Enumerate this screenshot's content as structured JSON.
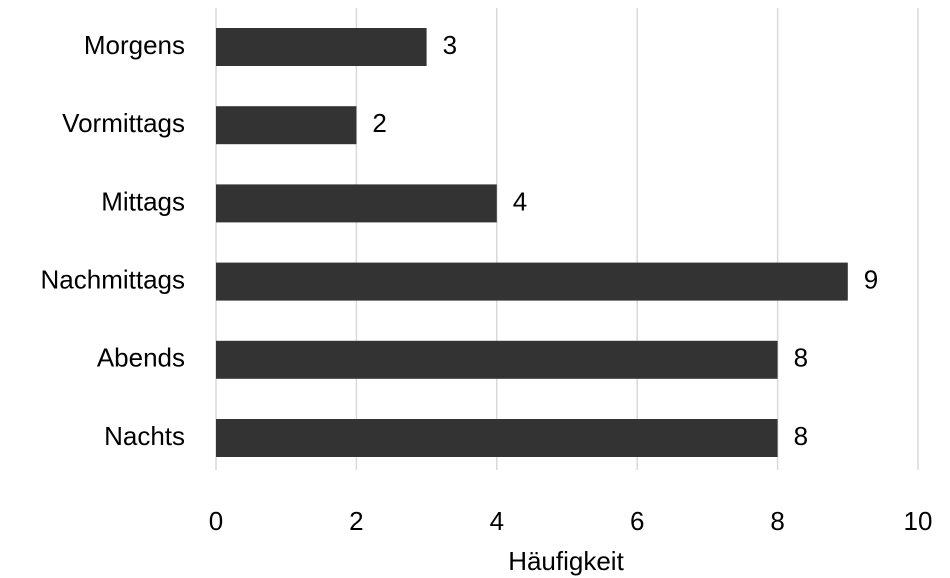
{
  "chart_data": {
    "type": "bar",
    "orientation": "horizontal",
    "categories": [
      "Morgens",
      "Vormittags",
      "Mittags",
      "Nachmittags",
      "Abends",
      "Nachts"
    ],
    "values": [
      3,
      2,
      4,
      9,
      8,
      8
    ],
    "xlabel": "Häufigkeit",
    "ylabel": "",
    "xlim": [
      0,
      10
    ],
    "xticks": [
      "0",
      "2",
      "4",
      "6",
      "8",
      "10"
    ],
    "grid": true,
    "bar_color": "#333333",
    "grid_color": "#d9d9d9"
  }
}
